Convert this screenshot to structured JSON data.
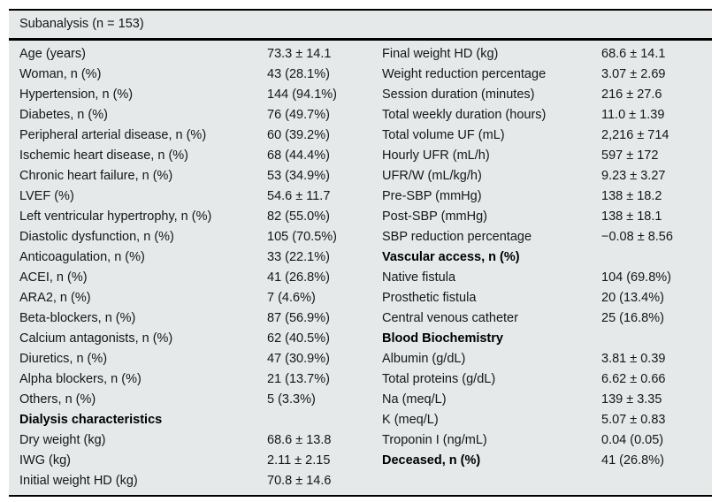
{
  "table": {
    "title": "Subanalysis (n = 153)",
    "panel_background": "#e5e9e9",
    "rule_color": "#000000",
    "rows": [
      {
        "left_label": "Age (years)",
        "left_value": "73.3 ± 14.1",
        "right_label": "Final weight HD (kg)",
        "right_value": "68.6 ± 14.1",
        "left_bold": false,
        "right_bold": false
      },
      {
        "left_label": "Woman, n (%)",
        "left_value": "43 (28.1%)",
        "right_label": "Weight reduction percentage",
        "right_value": "3.07 ± 2.69",
        "left_bold": false,
        "right_bold": false
      },
      {
        "left_label": "Hypertension, n (%)",
        "left_value": "144 (94.1%)",
        "right_label": "Session duration (minutes)",
        "right_value": "216 ± 27.6",
        "left_bold": false,
        "right_bold": false
      },
      {
        "left_label": "Diabetes, n (%)",
        "left_value": "76 (49.7%)",
        "right_label": "Total weekly duration (hours)",
        "right_value": "11.0 ± 1.39",
        "left_bold": false,
        "right_bold": false
      },
      {
        "left_label": "Peripheral arterial disease, n (%)",
        "left_value": "60 (39.2%)",
        "right_label": "Total volume UF (mL)",
        "right_value": "2,216 ± 714",
        "left_bold": false,
        "right_bold": false
      },
      {
        "left_label": "Ischemic heart disease, n (%)",
        "left_value": "68 (44.4%)",
        "right_label": "Hourly UFR (mL/h)",
        "right_value": "597 ± 172",
        "left_bold": false,
        "right_bold": false
      },
      {
        "left_label": "Chronic heart failure, n (%)",
        "left_value": "53 (34.9%)",
        "right_label": "UFR/W (mL/kg/h)",
        "right_value": "9.23 ± 3.27",
        "left_bold": false,
        "right_bold": false
      },
      {
        "left_label": "LVEF (%)",
        "left_value": "54.6 ± 11.7",
        "right_label": "Pre-SBP (mmHg)",
        "right_value": "138 ± 18.2",
        "left_bold": false,
        "right_bold": false
      },
      {
        "left_label": "Left ventricular hypertrophy, n (%)",
        "left_value": "82 (55.0%)",
        "right_label": "Post-SBP (mmHg)",
        "right_value": "138 ± 18.1",
        "left_bold": false,
        "right_bold": false
      },
      {
        "left_label": "Diastolic dysfunction, n (%)",
        "left_value": "105 (70.5%)",
        "right_label": "SBP reduction percentage",
        "right_value": "−0.08 ± 8.56",
        "left_bold": false,
        "right_bold": false
      },
      {
        "left_label": "Anticoagulation, n (%)",
        "left_value": "33 (22.1%)",
        "right_label": "Vascular access, n (%)",
        "right_value": "",
        "left_bold": false,
        "right_bold": true
      },
      {
        "left_label": "ACEI, n (%)",
        "left_value": "41 (26.8%)",
        "right_label": "Native fistula",
        "right_value": "104 (69.8%)",
        "left_bold": false,
        "right_bold": false
      },
      {
        "left_label": "ARA2, n (%)",
        "left_value": "7 (4.6%)",
        "right_label": "Prosthetic fistula",
        "right_value": "20 (13.4%)",
        "left_bold": false,
        "right_bold": false
      },
      {
        "left_label": "Beta-blockers, n (%)",
        "left_value": "87 (56.9%)",
        "right_label": "Central venous catheter",
        "right_value": "25 (16.8%)",
        "left_bold": false,
        "right_bold": false
      },
      {
        "left_label": "Calcium antagonists, n (%)",
        "left_value": "62 (40.5%)",
        "right_label": "Blood Biochemistry",
        "right_value": "",
        "left_bold": false,
        "right_bold": true
      },
      {
        "left_label": "Diuretics, n (%)",
        "left_value": "47 (30.9%)",
        "right_label": "Albumin (g/dL)",
        "right_value": "3.81 ± 0.39",
        "left_bold": false,
        "right_bold": false
      },
      {
        "left_label": "Alpha blockers, n (%)",
        "left_value": "21 (13.7%)",
        "right_label": "Total proteins (g/dL)",
        "right_value": "6.62 ± 0.66",
        "left_bold": false,
        "right_bold": false
      },
      {
        "left_label": "Others, n (%)",
        "left_value": "5 (3.3%)",
        "right_label": "Na (meq/L)",
        "right_value": "139 ± 3.35",
        "left_bold": false,
        "right_bold": false
      },
      {
        "left_label": "Dialysis characteristics",
        "left_value": "",
        "right_label": "K (meq/L)",
        "right_value": "5.07 ± 0.83",
        "left_bold": true,
        "right_bold": false
      },
      {
        "left_label": "Dry weight (kg)",
        "left_value": "68.6 ± 13.8",
        "right_label": "Troponin I (ng/mL)",
        "right_value": "0.04 (0.05)",
        "left_bold": false,
        "right_bold": false
      },
      {
        "left_label": "IWG (kg)",
        "left_value": "2.11 ± 2.15",
        "right_label": "Deceased, n (%)",
        "right_value": "41 (26.8%)",
        "left_bold": false,
        "right_bold": true
      },
      {
        "left_label": "Initial weight HD (kg)",
        "left_value": "70.8 ± 14.6",
        "right_label": "",
        "right_value": "",
        "left_bold": false,
        "right_bold": false
      }
    ]
  }
}
